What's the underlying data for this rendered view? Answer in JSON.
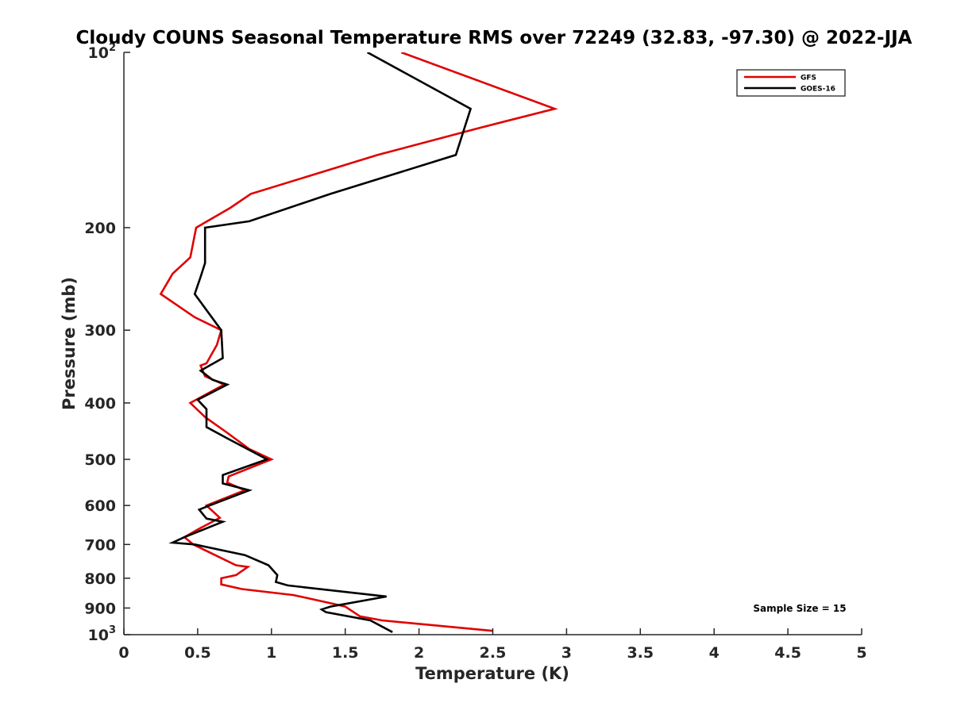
{
  "chart_data": {
    "type": "line",
    "title": "Cloudy COUNS Seasonal Temperature RMS over 72249 (32.83, -97.30) @ 2022-JJA",
    "xlabel": "Temperature (K)",
    "ylabel": "Pressure (mb)",
    "xlim": [
      0,
      5
    ],
    "ylim": [
      100,
      1000
    ],
    "y_scale": "log",
    "y_reversed": true,
    "grid": false,
    "legend_position": "top-right",
    "x_ticks": [
      "0",
      "0.5",
      "1",
      "1.5",
      "2",
      "2.5",
      "3",
      "3.5",
      "4",
      "4.5",
      "5"
    ],
    "y_ticks": [
      {
        "value": 100,
        "base": "10",
        "exp": "2"
      },
      {
        "value": 200,
        "label": "200"
      },
      {
        "value": 300,
        "label": "300"
      },
      {
        "value": 400,
        "label": "400"
      },
      {
        "value": 500,
        "label": "500"
      },
      {
        "value": 600,
        "label": "600"
      },
      {
        "value": 700,
        "label": "700"
      },
      {
        "value": 800,
        "label": "800"
      },
      {
        "value": 900,
        "label": "900"
      },
      {
        "value": 1000,
        "base": "10",
        "exp": "3"
      }
    ],
    "annotation": "Sample Size = 15",
    "series": [
      {
        "name": "GFS",
        "color": "#e00000",
        "points": [
          [
            1.88,
            100
          ],
          [
            2.92,
            125
          ],
          [
            2.4,
            135
          ],
          [
            1.72,
            150
          ],
          [
            0.86,
            175
          ],
          [
            0.72,
            185
          ],
          [
            0.49,
            200
          ],
          [
            0.45,
            225
          ],
          [
            0.33,
            240
          ],
          [
            0.25,
            260
          ],
          [
            0.48,
            285
          ],
          [
            0.66,
            300
          ],
          [
            0.63,
            318
          ],
          [
            0.56,
            342
          ],
          [
            0.52,
            345
          ],
          [
            0.55,
            360
          ],
          [
            0.68,
            372
          ],
          [
            0.45,
            400
          ],
          [
            0.55,
            423
          ],
          [
            0.7,
            450
          ],
          [
            0.85,
            480
          ],
          [
            1.0,
            500
          ],
          [
            0.71,
            535
          ],
          [
            0.7,
            548
          ],
          [
            0.82,
            565
          ],
          [
            0.56,
            600
          ],
          [
            0.65,
            630
          ],
          [
            0.5,
            660
          ],
          [
            0.41,
            680
          ],
          [
            0.47,
            700
          ],
          [
            0.76,
            760
          ],
          [
            0.84,
            765
          ],
          [
            0.76,
            790
          ],
          [
            0.66,
            800
          ],
          [
            0.66,
            820
          ],
          [
            0.8,
            835
          ],
          [
            1.15,
            855
          ],
          [
            1.42,
            885
          ],
          [
            1.5,
            895
          ],
          [
            1.6,
            930
          ],
          [
            1.75,
            945
          ],
          [
            2.5,
            985
          ]
        ]
      },
      {
        "name": "GOES-16",
        "color": "#000000",
        "points": [
          [
            1.65,
            100
          ],
          [
            2.35,
            125
          ],
          [
            2.25,
            150
          ],
          [
            1.4,
            175
          ],
          [
            0.85,
            195
          ],
          [
            0.55,
            200
          ],
          [
            0.55,
            230
          ],
          [
            0.52,
            243
          ],
          [
            0.48,
            260
          ],
          [
            0.66,
            300
          ],
          [
            0.67,
            335
          ],
          [
            0.52,
            352
          ],
          [
            0.6,
            365
          ],
          [
            0.7,
            372
          ],
          [
            0.5,
            395
          ],
          [
            0.56,
            410
          ],
          [
            0.56,
            440
          ],
          [
            0.7,
            460
          ],
          [
            0.97,
            500
          ],
          [
            0.67,
            532
          ],
          [
            0.67,
            550
          ],
          [
            0.85,
            565
          ],
          [
            0.58,
            600
          ],
          [
            0.51,
            610
          ],
          [
            0.56,
            632
          ],
          [
            0.67,
            640
          ],
          [
            0.41,
            680
          ],
          [
            0.33,
            695
          ],
          [
            0.48,
            700
          ],
          [
            0.82,
            730
          ],
          [
            0.98,
            760
          ],
          [
            1.04,
            790
          ],
          [
            1.03,
            812
          ],
          [
            1.11,
            823
          ],
          [
            1.78,
            860
          ],
          [
            1.4,
            895
          ],
          [
            1.34,
            905
          ],
          [
            1.37,
            915
          ],
          [
            1.67,
            945
          ],
          [
            1.82,
            990
          ]
        ]
      }
    ]
  }
}
